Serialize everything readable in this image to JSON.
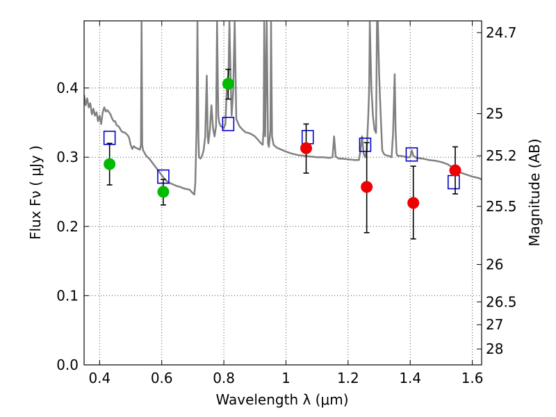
{
  "chart_data": {
    "type": "scatter",
    "xlabel": "Wavelength  λ (μm)",
    "ylabel": "Flux  Fν ( μJy )",
    "ylabel_right": "Magnitude (AB)",
    "xlim": [
      0.35,
      1.63
    ],
    "ylim": [
      0.0,
      0.497
    ],
    "grid": true,
    "x_ticks": [
      0.4,
      0.6,
      0.8,
      1.0,
      1.2,
      1.4,
      1.6
    ],
    "x_tick_labels": [
      "0.4",
      "0.6",
      "0.8",
      "1",
      "1.2",
      "1.4",
      "1.6"
    ],
    "y_ticks": [
      0.0,
      0.1,
      0.2,
      0.3,
      0.4
    ],
    "y_tick_labels": [
      "0.0",
      "0.1",
      "0.2",
      "0.3",
      "0.4"
    ],
    "right_ticks": [
      {
        "label": "24.7",
        "flux": 0.48
      },
      {
        "label": "25",
        "flux": 0.363
      },
      {
        "label": "25.2",
        "flux": 0.302
      },
      {
        "label": "25.5",
        "flux": 0.229
      },
      {
        "label": "26",
        "flux": 0.145
      },
      {
        "label": "26.5",
        "flux": 0.091
      },
      {
        "label": "27",
        "flux": 0.058
      },
      {
        "label": "28",
        "flux": 0.023
      }
    ],
    "colors": {
      "spectrum": "#808080",
      "green": "#00bb00",
      "red": "#ee0000",
      "model": "#0000cc",
      "errorbar": "#000000"
    },
    "series": [
      {
        "marker": "green-circle",
        "x": [
          0.432,
          0.605,
          0.814
        ],
        "y": [
          0.29,
          0.25,
          0.406
        ],
        "yerr_low": [
          0.26,
          0.231,
          0.384
        ],
        "yerr_high": [
          0.32,
          0.268,
          0.427
        ]
      },
      {
        "marker": "red-circle",
        "x": [
          1.065,
          1.26,
          1.41,
          1.545
        ],
        "y": [
          0.313,
          0.257,
          0.234,
          0.281
        ],
        "yerr_low": [
          0.277,
          0.191,
          0.182,
          0.247
        ],
        "yerr_high": [
          0.348,
          0.321,
          0.287,
          0.315
        ]
      },
      {
        "marker": "blue-open-square",
        "x": [
          0.432,
          0.605,
          0.814,
          1.07,
          1.255,
          1.405,
          1.54
        ],
        "y": [
          0.328,
          0.272,
          0.348,
          0.329,
          0.318,
          0.304,
          0.264
        ]
      }
    ],
    "spectrum": [
      [
        0.35,
        0.39
      ],
      [
        0.355,
        0.375
      ],
      [
        0.36,
        0.385
      ],
      [
        0.365,
        0.372
      ],
      [
        0.37,
        0.378
      ],
      [
        0.375,
        0.362
      ],
      [
        0.38,
        0.37
      ],
      [
        0.385,
        0.36
      ],
      [
        0.39,
        0.365
      ],
      [
        0.395,
        0.352
      ],
      [
        0.4,
        0.36
      ],
      [
        0.405,
        0.348
      ],
      [
        0.41,
        0.365
      ],
      [
        0.415,
        0.372
      ],
      [
        0.42,
        0.366
      ],
      [
        0.425,
        0.368
      ],
      [
        0.43,
        0.365
      ],
      [
        0.435,
        0.362
      ],
      [
        0.44,
        0.356
      ],
      [
        0.445,
        0.352
      ],
      [
        0.45,
        0.352
      ],
      [
        0.455,
        0.346
      ],
      [
        0.46,
        0.345
      ],
      [
        0.465,
        0.342
      ],
      [
        0.47,
        0.338
      ],
      [
        0.475,
        0.336
      ],
      [
        0.48,
        0.336
      ],
      [
        0.485,
        0.334
      ],
      [
        0.49,
        0.332
      ],
      [
        0.495,
        0.328
      ],
      [
        0.5,
        0.318
      ],
      [
        0.505,
        0.312
      ],
      [
        0.51,
        0.316
      ],
      [
        0.515,
        0.314
      ],
      [
        0.52,
        0.313
      ],
      [
        0.525,
        0.312
      ],
      [
        0.53,
        0.311
      ],
      [
        0.533,
        0.318
      ],
      [
        0.535,
        0.495
      ],
      [
        0.537,
        0.318
      ],
      [
        0.54,
        0.31
      ],
      [
        0.545,
        0.306
      ],
      [
        0.55,
        0.302
      ],
      [
        0.56,
        0.298
      ],
      [
        0.57,
        0.292
      ],
      [
        0.58,
        0.286
      ],
      [
        0.59,
        0.28
      ],
      [
        0.6,
        0.274
      ],
      [
        0.61,
        0.268
      ],
      [
        0.62,
        0.264
      ],
      [
        0.63,
        0.262
      ],
      [
        0.64,
        0.26
      ],
      [
        0.65,
        0.258
      ],
      [
        0.66,
        0.257
      ],
      [
        0.67,
        0.255
      ],
      [
        0.68,
        0.254
      ],
      [
        0.69,
        0.253
      ],
      [
        0.7,
        0.248
      ],
      [
        0.705,
        0.246
      ],
      [
        0.708,
        0.262
      ],
      [
        0.712,
        0.34
      ],
      [
        0.715,
        0.495
      ],
      [
        0.718,
        0.33
      ],
      [
        0.72,
        0.3
      ],
      [
        0.725,
        0.298
      ],
      [
        0.73,
        0.302
      ],
      [
        0.735,
        0.31
      ],
      [
        0.74,
        0.33
      ],
      [
        0.745,
        0.418
      ],
      [
        0.748,
        0.33
      ],
      [
        0.75,
        0.32
      ],
      [
        0.755,
        0.34
      ],
      [
        0.76,
        0.375
      ],
      [
        0.765,
        0.342
      ],
      [
        0.77,
        0.33
      ],
      [
        0.775,
        0.345
      ],
      [
        0.778,
        0.495
      ],
      [
        0.782,
        0.36
      ],
      [
        0.785,
        0.35
      ],
      [
        0.79,
        0.345
      ],
      [
        0.8,
        0.342
      ],
      [
        0.805,
        0.348
      ],
      [
        0.81,
        0.405
      ],
      [
        0.815,
        0.42
      ],
      [
        0.818,
        0.495
      ],
      [
        0.822,
        0.41
      ],
      [
        0.825,
        0.36
      ],
      [
        0.83,
        0.395
      ],
      [
        0.835,
        0.495
      ],
      [
        0.84,
        0.355
      ],
      [
        0.85,
        0.345
      ],
      [
        0.86,
        0.34
      ],
      [
        0.87,
        0.336
      ],
      [
        0.88,
        0.335
      ],
      [
        0.89,
        0.333
      ],
      [
        0.9,
        0.33
      ],
      [
        0.91,
        0.325
      ],
      [
        0.92,
        0.32
      ],
      [
        0.925,
        0.318
      ],
      [
        0.928,
        0.34
      ],
      [
        0.93,
        0.495
      ],
      [
        0.933,
        0.33
      ],
      [
        0.938,
        0.495
      ],
      [
        0.942,
        0.32
      ],
      [
        0.945,
        0.315
      ],
      [
        0.95,
        0.34
      ],
      [
        0.952,
        0.495
      ],
      [
        0.955,
        0.33
      ],
      [
        0.96,
        0.318
      ],
      [
        0.97,
        0.314
      ],
      [
        0.98,
        0.312
      ],
      [
        0.99,
        0.31
      ],
      [
        1.0,
        0.308
      ],
      [
        1.02,
        0.305
      ],
      [
        1.04,
        0.303
      ],
      [
        1.06,
        0.302
      ],
      [
        1.08,
        0.301
      ],
      [
        1.1,
        0.3
      ],
      [
        1.12,
        0.3
      ],
      [
        1.14,
        0.299
      ],
      [
        1.15,
        0.3
      ],
      [
        1.155,
        0.33
      ],
      [
        1.16,
        0.301
      ],
      [
        1.17,
        0.298
      ],
      [
        1.18,
        0.298
      ],
      [
        1.2,
        0.297
      ],
      [
        1.22,
        0.296
      ],
      [
        1.235,
        0.296
      ],
      [
        1.24,
        0.31
      ],
      [
        1.245,
        0.33
      ],
      [
        1.25,
        0.305
      ],
      [
        1.255,
        0.3
      ],
      [
        1.26,
        0.31
      ],
      [
        1.265,
        0.36
      ],
      [
        1.268,
        0.4
      ],
      [
        1.27,
        0.495
      ],
      [
        1.275,
        0.4
      ],
      [
        1.28,
        0.36
      ],
      [
        1.285,
        0.34
      ],
      [
        1.29,
        0.335
      ],
      [
        1.293,
        0.495
      ],
      [
        1.296,
        0.495
      ],
      [
        1.3,
        0.42
      ],
      [
        1.305,
        0.36
      ],
      [
        1.31,
        0.31
      ],
      [
        1.315,
        0.305
      ],
      [
        1.32,
        0.303
      ],
      [
        1.33,
        0.302
      ],
      [
        1.34,
        0.3
      ],
      [
        1.345,
        0.335
      ],
      [
        1.35,
        0.42
      ],
      [
        1.353,
        0.34
      ],
      [
        1.356,
        0.305
      ],
      [
        1.36,
        0.302
      ],
      [
        1.37,
        0.302
      ],
      [
        1.38,
        0.301
      ],
      [
        1.39,
        0.3
      ],
      [
        1.4,
        0.3
      ],
      [
        1.405,
        0.31
      ],
      [
        1.41,
        0.302
      ],
      [
        1.42,
        0.299
      ],
      [
        1.44,
        0.298
      ],
      [
        1.46,
        0.296
      ],
      [
        1.48,
        0.295
      ],
      [
        1.5,
        0.293
      ],
      [
        1.52,
        0.29
      ],
      [
        1.54,
        0.284
      ],
      [
        1.56,
        0.278
      ],
      [
        1.58,
        0.275
      ],
      [
        1.6,
        0.272
      ],
      [
        1.62,
        0.27
      ],
      [
        1.63,
        0.268
      ]
    ]
  }
}
